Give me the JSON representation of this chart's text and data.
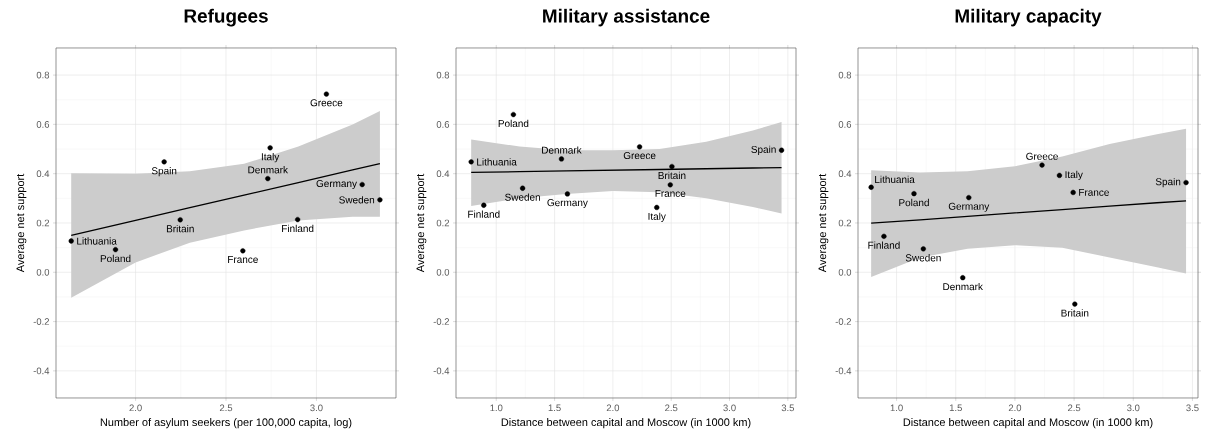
{
  "chart_data": [
    {
      "type": "scatter",
      "title": "Refugees",
      "xlabel": "Number of asylum seekers (per 100,000 capita, log)",
      "ylabel": "Average net support",
      "xlim": [
        1.56,
        3.44
      ],
      "ylim": [
        -0.51,
        0.91
      ],
      "xticks": [
        {
          "value": 2.0,
          "label": "2.0"
        },
        {
          "value": 2.5,
          "label": "2.5"
        },
        {
          "value": 3.0,
          "label": "3.0"
        }
      ],
      "yticks": [
        {
          "value": -0.4,
          "label": "-0.4"
        },
        {
          "value": -0.2,
          "label": "-0.2"
        },
        {
          "value": 0.0,
          "label": "0.0"
        },
        {
          "value": 0.2,
          "label": "0.2"
        },
        {
          "value": 0.4,
          "label": "0.4"
        },
        {
          "value": 0.6,
          "label": "0.6"
        },
        {
          "value": 0.8,
          "label": "0.8"
        }
      ],
      "grid": true,
      "series": [
        {
          "type": "scatter",
          "marker": "circle",
          "color": "#000000",
          "x": [
            1.644,
            1.889,
            2.158,
            2.247,
            2.593,
            2.731,
            2.744,
            2.896,
            3.055,
            3.253,
            3.351
          ],
          "values": [
            0.127,
            0.092,
            0.448,
            0.213,
            0.087,
            0.38,
            0.505,
            0.214,
            0.723,
            0.356,
            0.294
          ]
        },
        {
          "type": "line",
          "marker": "none",
          "color": "#000000",
          "x": [
            1.644,
            2.0,
            2.3,
            2.6,
            2.9,
            3.2,
            3.351
          ],
          "values": [
            0.15,
            0.211,
            0.262,
            0.313,
            0.364,
            0.415,
            0.441
          ],
          "lower": [
            -0.103,
            0.04,
            0.12,
            0.17,
            0.21,
            0.225,
            0.225
          ],
          "upper": [
            0.402,
            0.4,
            0.41,
            0.44,
            0.51,
            0.6,
            0.654
          ]
        }
      ],
      "annotations": [
        {
          "text": "Lithuania",
          "x": 1.644,
          "y": 0.127
        },
        {
          "text": "Poland",
          "x": 1.889,
          "y": 0.092
        },
        {
          "text": "Spain",
          "x": 2.158,
          "y": 0.448
        },
        {
          "text": "Britain",
          "x": 2.247,
          "y": 0.213
        },
        {
          "text": "France",
          "x": 2.593,
          "y": 0.087
        },
        {
          "text": "Denmark",
          "x": 2.731,
          "y": 0.38
        },
        {
          "text": "Italy",
          "x": 2.744,
          "y": 0.505
        },
        {
          "text": "Finland",
          "x": 2.896,
          "y": 0.214
        },
        {
          "text": "Greece",
          "x": 3.055,
          "y": 0.723
        },
        {
          "text": "Germany",
          "x": 3.253,
          "y": 0.356
        },
        {
          "text": "Sweden",
          "x": 3.351,
          "y": 0.294
        }
      ]
    },
    {
      "type": "scatter",
      "title": "Military assistance",
      "xlabel": "Distance between capital and Moscow (in 1000 km)",
      "ylabel": "Average net support",
      "xlim": [
        0.655,
        3.57
      ],
      "ylim": [
        -0.51,
        0.91
      ],
      "xticks": [
        {
          "value": 1.0,
          "label": "1.0"
        },
        {
          "value": 1.5,
          "label": "1.5"
        },
        {
          "value": 2.0,
          "label": "2.0"
        },
        {
          "value": 2.5,
          "label": "2.5"
        },
        {
          "value": 3.0,
          "label": "3.0"
        },
        {
          "value": 3.5,
          "label": "3.5"
        }
      ],
      "yticks": [
        {
          "value": -0.4,
          "label": "-0.4"
        },
        {
          "value": -0.2,
          "label": "-0.2"
        },
        {
          "value": 0.0,
          "label": "0.0"
        },
        {
          "value": 0.2,
          "label": "0.2"
        },
        {
          "value": 0.4,
          "label": "0.4"
        },
        {
          "value": 0.6,
          "label": "0.6"
        },
        {
          "value": 0.8,
          "label": "0.8"
        }
      ],
      "grid": true,
      "series": [
        {
          "type": "scatter",
          "marker": "circle",
          "color": "#000000",
          "x": [
            0.785,
            0.893,
            1.147,
            1.226,
            1.559,
            1.61,
            2.229,
            2.376,
            2.492,
            2.506,
            3.446
          ],
          "values": [
            0.448,
            0.272,
            0.64,
            0.341,
            0.46,
            0.318,
            0.509,
            0.263,
            0.355,
            0.429,
            0.495
          ]
        },
        {
          "type": "line",
          "marker": "none",
          "color": "#000000",
          "x": [
            0.785,
            1.2,
            1.6,
            2.0,
            2.4,
            2.8,
            3.2,
            3.446
          ],
          "values": [
            0.405,
            0.408,
            0.411,
            0.414,
            0.417,
            0.42,
            0.423,
            0.425
          ],
          "lower": [
            0.269,
            0.3,
            0.318,
            0.33,
            0.325,
            0.3,
            0.265,
            0.238
          ],
          "upper": [
            0.539,
            0.51,
            0.495,
            0.495,
            0.5,
            0.53,
            0.575,
            0.61
          ]
        }
      ],
      "annotations": [
        {
          "text": "Lithuania",
          "x": 0.785,
          "y": 0.448
        },
        {
          "text": "Finland",
          "x": 0.893,
          "y": 0.272
        },
        {
          "text": "Poland",
          "x": 1.147,
          "y": 0.64
        },
        {
          "text": "Sweden",
          "x": 1.226,
          "y": 0.341
        },
        {
          "text": "Denmark",
          "x": 1.559,
          "y": 0.46
        },
        {
          "text": "Germany",
          "x": 1.61,
          "y": 0.318
        },
        {
          "text": "Greece",
          "x": 2.229,
          "y": 0.509
        },
        {
          "text": "Italy",
          "x": 2.376,
          "y": 0.263
        },
        {
          "text": "France",
          "x": 2.492,
          "y": 0.355
        },
        {
          "text": "Britain",
          "x": 2.506,
          "y": 0.429
        },
        {
          "text": "Spain",
          "x": 3.446,
          "y": 0.495
        }
      ]
    },
    {
      "type": "scatter",
      "title": "Military capacity",
      "xlabel": "Distance between capital and Moscow (in 1000 km)",
      "ylabel": "Average net support",
      "xlim": [
        0.674,
        3.547
      ],
      "ylim": [
        -0.51,
        0.91
      ],
      "xticks": [
        {
          "value": 1.0,
          "label": "1.0"
        },
        {
          "value": 1.5,
          "label": "1.5"
        },
        {
          "value": 2.0,
          "label": "2.0"
        },
        {
          "value": 2.5,
          "label": "2.5"
        },
        {
          "value": 3.0,
          "label": "3.0"
        },
        {
          "value": 3.5,
          "label": "3.5"
        }
      ],
      "yticks": [
        {
          "value": -0.4,
          "label": "-0.4"
        },
        {
          "value": -0.2,
          "label": "-0.2"
        },
        {
          "value": 0.0,
          "label": "0.0"
        },
        {
          "value": 0.2,
          "label": "0.2"
        },
        {
          "value": 0.4,
          "label": "0.4"
        },
        {
          "value": 0.6,
          "label": "0.6"
        },
        {
          "value": 0.8,
          "label": "0.8"
        }
      ],
      "grid": true,
      "series": [
        {
          "type": "scatter",
          "marker": "circle",
          "color": "#000000",
          "x": [
            0.785,
            0.893,
            1.147,
            1.226,
            1.559,
            1.61,
            2.229,
            2.376,
            2.492,
            2.506,
            3.446
          ],
          "values": [
            0.345,
            0.146,
            0.319,
            0.095,
            -0.022,
            0.303,
            0.435,
            0.393,
            0.324,
            -0.129,
            0.364
          ]
        },
        {
          "type": "line",
          "marker": "none",
          "color": "#000000",
          "x": [
            0.785,
            1.2,
            1.6,
            2.0,
            2.4,
            2.8,
            3.2,
            3.446
          ],
          "values": [
            0.199,
            0.213,
            0.227,
            0.241,
            0.254,
            0.268,
            0.282,
            0.29
          ],
          "lower": [
            -0.019,
            0.06,
            0.095,
            0.11,
            0.1,
            0.06,
            0.02,
            -0.005
          ],
          "upper": [
            0.414,
            0.405,
            0.41,
            0.43,
            0.47,
            0.52,
            0.56,
            0.582
          ]
        }
      ],
      "annotations": [
        {
          "text": "Lithuania",
          "x": 0.785,
          "y": 0.345
        },
        {
          "text": "Finland",
          "x": 0.893,
          "y": 0.146
        },
        {
          "text": "Poland",
          "x": 1.147,
          "y": 0.319
        },
        {
          "text": "Sweden",
          "x": 1.226,
          "y": 0.095
        },
        {
          "text": "Denmark",
          "x": 1.559,
          "y": -0.022
        },
        {
          "text": "Germany",
          "x": 1.61,
          "y": 0.303
        },
        {
          "text": "Greece",
          "x": 2.229,
          "y": 0.435
        },
        {
          "text": "Italy",
          "x": 2.376,
          "y": 0.393
        },
        {
          "text": "France",
          "x": 2.492,
          "y": 0.324
        },
        {
          "text": "Britain",
          "x": 2.506,
          "y": -0.129
        },
        {
          "text": "Spain",
          "x": 3.446,
          "y": 0.364
        }
      ]
    }
  ]
}
